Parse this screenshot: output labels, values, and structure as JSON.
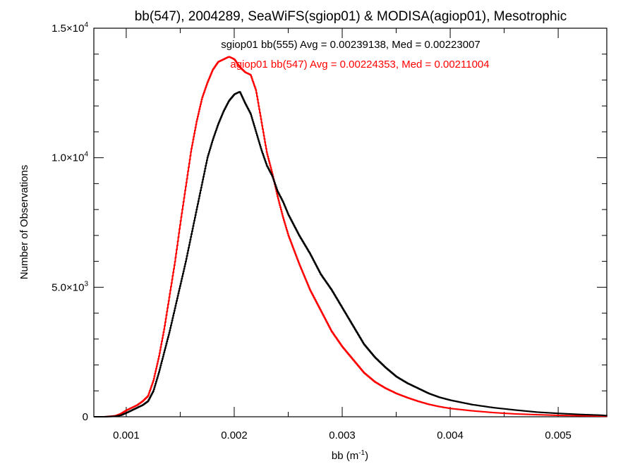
{
  "chart_data": {
    "type": "line",
    "title": "bb(547), 2004289, SeaWiFS(sgiop01) & MODISA(agiop01), Mesotrophic",
    "xlabel": "bb (m",
    "xlabel_sup": "-1",
    "xlabel_end": ")",
    "ylabel": "Number of Observations",
    "xlim": [
      0.0007,
      0.00545
    ],
    "ylim": [
      0,
      15000
    ],
    "grid": false,
    "x_ticks": [
      {
        "value": 0.001,
        "label": "0.001"
      },
      {
        "value": 0.002,
        "label": "0.002"
      },
      {
        "value": 0.003,
        "label": "0.003"
      },
      {
        "value": 0.004,
        "label": "0.004"
      },
      {
        "value": 0.005,
        "label": "0.005"
      }
    ],
    "y_ticks": [
      {
        "value": 0,
        "label": "0",
        "exp": ""
      },
      {
        "value": 5000,
        "label": "5.0×10",
        "exp": "3"
      },
      {
        "value": 10000,
        "label": "1.0×10",
        "exp": "4"
      },
      {
        "value": 15000,
        "label": "1.5×10",
        "exp": "4"
      }
    ],
    "annotations": [
      {
        "text": "sgiop01 bb(555) Avg = 0.00239138, Med = 0.00223007",
        "color": "#000000"
      },
      {
        "text": "agiop01  bb(547) Avg = 0.00224353, Med = 0.00211004",
        "color": "#ff0000"
      }
    ],
    "series": [
      {
        "label": "sgiop01 bb(555)",
        "color": "#000000",
        "step": true,
        "x": [
          0.0007,
          0.0008,
          0.0009,
          0.00095,
          0.001,
          0.00105,
          0.0011,
          0.00115,
          0.0012,
          0.00125,
          0.0013,
          0.00135,
          0.0014,
          0.00145,
          0.0015,
          0.00155,
          0.0016,
          0.00165,
          0.0017,
          0.00175,
          0.0018,
          0.00185,
          0.0019,
          0.00195,
          0.002,
          0.00205,
          0.0021,
          0.00215,
          0.0022,
          0.00225,
          0.0023,
          0.00235,
          0.0024,
          0.00245,
          0.0025,
          0.0026,
          0.0027,
          0.0028,
          0.0029,
          0.003,
          0.0031,
          0.0032,
          0.0033,
          0.0034,
          0.0035,
          0.0036,
          0.0037,
          0.0038,
          0.0039,
          0.004,
          0.0042,
          0.0044,
          0.0046,
          0.0048,
          0.005,
          0.0052,
          0.0054,
          0.00545
        ],
        "y": [
          0,
          0,
          20,
          60,
          150,
          250,
          350,
          450,
          600,
          1000,
          1700,
          2500,
          3300,
          4200,
          5100,
          6000,
          7000,
          8000,
          9000,
          10000,
          10700,
          11300,
          11800,
          12200,
          12450,
          12550,
          12100,
          11700,
          11000,
          10300,
          9700,
          9300,
          8700,
          8300,
          7800,
          7000,
          6300,
          5500,
          4900,
          4200,
          3500,
          2800,
          2300,
          1900,
          1550,
          1300,
          1100,
          900,
          750,
          640,
          470,
          350,
          260,
          180,
          130,
          90,
          60,
          40
        ]
      },
      {
        "label": "agiop01 bb(547)",
        "color": "#ff0000",
        "step": true,
        "x": [
          0.0007,
          0.0008,
          0.0009,
          0.00095,
          0.001,
          0.00105,
          0.0011,
          0.00115,
          0.0012,
          0.00125,
          0.0013,
          0.00135,
          0.0014,
          0.00145,
          0.0015,
          0.00155,
          0.0016,
          0.00165,
          0.0017,
          0.00175,
          0.0018,
          0.00185,
          0.0019,
          0.00195,
          0.002,
          0.00205,
          0.0021,
          0.00215,
          0.0022,
          0.00225,
          0.0023,
          0.00235,
          0.0024,
          0.00245,
          0.0025,
          0.0026,
          0.0027,
          0.0028,
          0.0029,
          0.003,
          0.0031,
          0.0032,
          0.0033,
          0.0034,
          0.0035,
          0.0036,
          0.0037,
          0.0038,
          0.0039,
          0.004,
          0.0042,
          0.0044,
          0.0046,
          0.0048,
          0.005,
          0.0052,
          0.0054,
          0.00545
        ],
        "y": [
          0,
          0,
          40,
          120,
          250,
          350,
          450,
          600,
          800,
          1400,
          2300,
          3400,
          4700,
          6000,
          7500,
          8900,
          10300,
          11400,
          12300,
          12900,
          13400,
          13700,
          13800,
          13900,
          13800,
          13500,
          13300,
          13200,
          12600,
          11400,
          10200,
          9400,
          8500,
          7700,
          7000,
          5900,
          4900,
          4100,
          3300,
          2700,
          2200,
          1700,
          1350,
          1100,
          900,
          740,
          600,
          480,
          390,
          320,
          230,
          160,
          110,
          80,
          55,
          40,
          25,
          20
        ]
      }
    ]
  }
}
